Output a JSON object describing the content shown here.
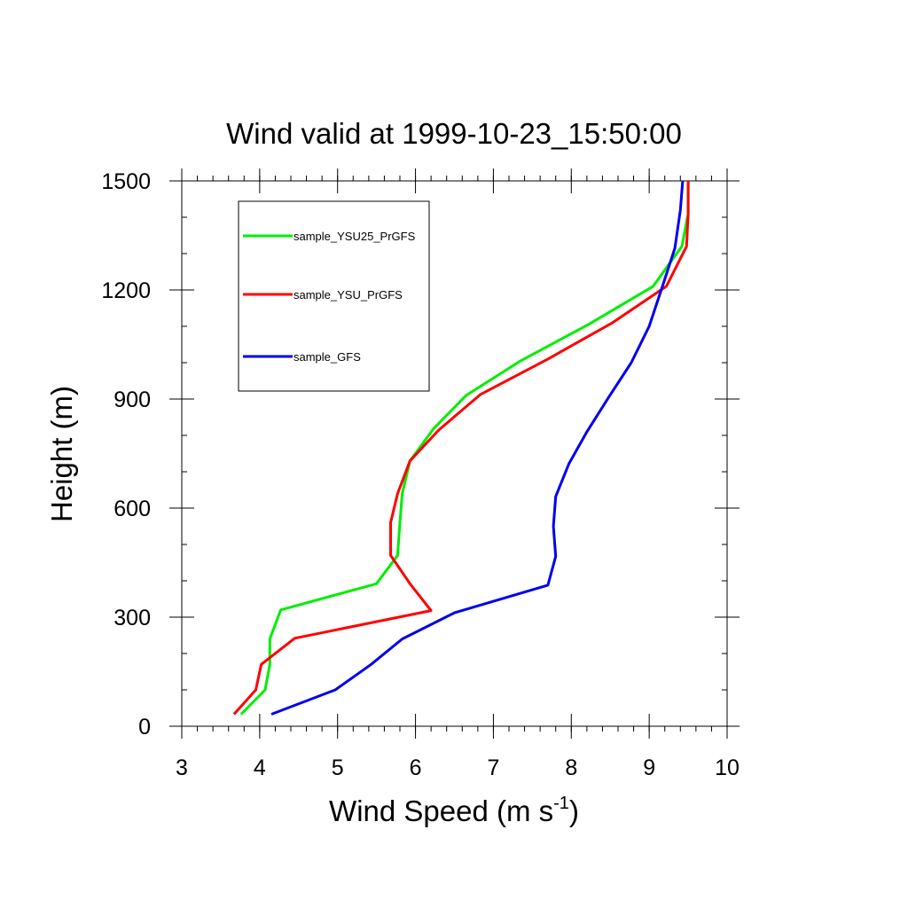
{
  "chart_data": {
    "type": "line",
    "title": "Wind valid at 1999-10-23_15:50:00",
    "xlabel": "Wind Speed (m s",
    "xlabel_sup": "-1",
    "xlabel_end": ")",
    "ylabel": "Height (m)",
    "xlim": [
      3,
      10
    ],
    "ylim": [
      0,
      1500
    ],
    "x_ticks": [
      3,
      4,
      5,
      6,
      7,
      8,
      9,
      10
    ],
    "y_ticks": [
      0,
      300,
      600,
      900,
      1200,
      1500
    ],
    "x_tick_labels": [
      "3",
      "4",
      "5",
      "6",
      "7",
      "8",
      "9",
      "10"
    ],
    "y_tick_labels": [
      "0",
      "300",
      "600",
      "900",
      "1200",
      "1500"
    ],
    "grid": false,
    "legend_position": "top-left (boxed)",
    "series": [
      {
        "name": "sample_YSU25_PrGFS",
        "color": "#00ee00",
        "points": [
          [
            3.76,
            33
          ],
          [
            4.07,
            100
          ],
          [
            4.13,
            170
          ],
          [
            4.13,
            240
          ],
          [
            4.27,
            320
          ],
          [
            5.5,
            392
          ],
          [
            5.77,
            470
          ],
          [
            5.8,
            560
          ],
          [
            5.83,
            640
          ],
          [
            5.93,
            730
          ],
          [
            6.23,
            818
          ],
          [
            6.65,
            910
          ],
          [
            7.35,
            1005
          ],
          [
            8.22,
            1105
          ],
          [
            9.05,
            1210
          ],
          [
            9.42,
            1320
          ],
          [
            9.5,
            1410
          ],
          [
            9.5,
            1500
          ]
        ]
      },
      {
        "name": "sample_YSU_PrGFS",
        "color": "#ff0000",
        "points": [
          [
            3.67,
            33
          ],
          [
            3.95,
            100
          ],
          [
            4.02,
            170
          ],
          [
            4.45,
            242
          ],
          [
            6.2,
            318
          ],
          [
            5.93,
            392
          ],
          [
            5.68,
            470
          ],
          [
            5.68,
            560
          ],
          [
            5.77,
            640
          ],
          [
            5.93,
            730
          ],
          [
            6.3,
            815
          ],
          [
            6.83,
            912
          ],
          [
            7.7,
            1010
          ],
          [
            8.53,
            1110
          ],
          [
            9.22,
            1210
          ],
          [
            9.48,
            1320
          ],
          [
            9.5,
            1410
          ],
          [
            9.5,
            1500
          ]
        ]
      },
      {
        "name": "sample_GFS",
        "color": "#0000ee",
        "points": [
          [
            4.15,
            33
          ],
          [
            4.97,
            100
          ],
          [
            5.43,
            170
          ],
          [
            5.83,
            240
          ],
          [
            6.5,
            312
          ],
          [
            7.7,
            388
          ],
          [
            7.8,
            467
          ],
          [
            7.77,
            550
          ],
          [
            7.8,
            632
          ],
          [
            7.97,
            722
          ],
          [
            8.2,
            810
          ],
          [
            8.48,
            905
          ],
          [
            8.77,
            1000
          ],
          [
            9.0,
            1100
          ],
          [
            9.17,
            1210
          ],
          [
            9.33,
            1315
          ],
          [
            9.4,
            1420
          ],
          [
            9.43,
            1500
          ]
        ]
      }
    ]
  }
}
